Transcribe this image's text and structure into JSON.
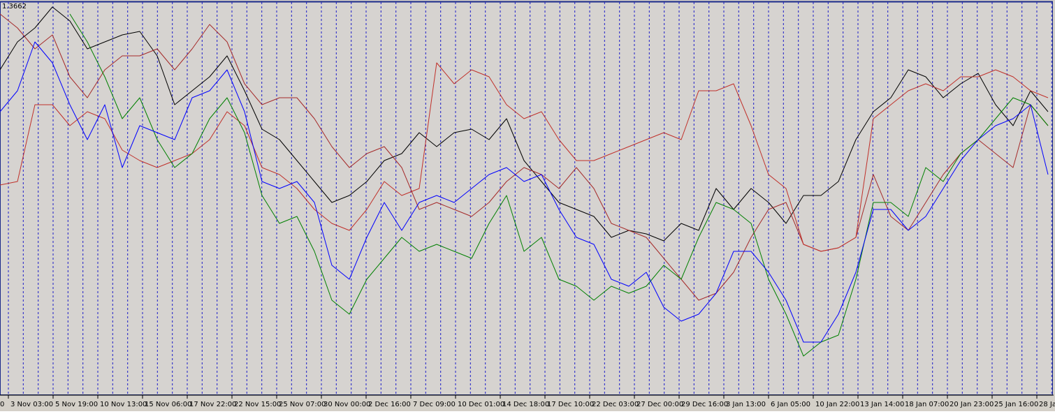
{
  "chart_data": {
    "type": "line",
    "ylim": [
      1.31,
      1.3662
    ],
    "yticks": [
      1.3662
    ],
    "xtick_labels": [
      "0",
      "3 Nov 03:00",
      "5 Nov 19:00",
      "10 Nov 13:00",
      "15 Nov 06:00",
      "17 Nov 22:00",
      "22 Nov 15:00",
      "25 Nov 07:00",
      "30 Nov 00:00",
      "2 Dec 16:00",
      "7 Dec 09:00",
      "10 Dec 01:00",
      "14 Dec 18:00",
      "17 Dec 10:00",
      "22 Dec 03:00",
      "27 Dec 00:00",
      "29 Dec 16:00",
      "3 Jan 13:00",
      "6 Jan 05:00",
      "10 Jan 22:00",
      "13 Jan 14:00",
      "18 Jan 07:00",
      "20 Jan 23:00",
      "25 Jan 16:00",
      "28 Ja"
    ],
    "grid": true,
    "series": [
      {
        "color": "#000000",
        "values": [
          1.3565,
          1.3605,
          1.3625,
          1.3655,
          1.3635,
          1.3595,
          1.3605,
          1.3615,
          1.362,
          1.3585,
          1.3515,
          1.3535,
          1.3555,
          1.3585,
          1.3535,
          1.348,
          1.3465,
          1.3435,
          1.3405,
          1.3375,
          1.3385,
          1.3405,
          1.3435,
          1.3445,
          1.3475,
          1.3455,
          1.3475,
          1.348,
          1.3465,
          1.3495,
          1.3435,
          1.3405,
          1.3375,
          1.3365,
          1.3355,
          1.3325,
          1.3335,
          1.333,
          1.332,
          1.3345,
          1.3335,
          1.3395,
          1.3365,
          1.3395,
          1.3375,
          1.3345,
          1.3385,
          1.3385,
          1.3405,
          1.3465,
          1.3505,
          1.3525,
          1.3565,
          1.3555,
          1.3525,
          1.3545,
          1.356,
          1.3515,
          1.3485,
          1.3535,
          1.3505
        ]
      },
      {
        "color": "#a52a2a",
        "values": [
          1.3645,
          1.3625,
          1.3595,
          1.3615,
          1.3555,
          1.3525,
          1.3565,
          1.3585,
          1.3585,
          1.3595,
          1.3565,
          1.3595,
          1.363,
          1.3605,
          1.3545,
          1.3515,
          1.3525,
          1.3525,
          1.3495,
          1.3455,
          1.3425,
          1.3445,
          1.3455,
          1.3425,
          1.3365,
          1.3375,
          1.3365,
          1.3355,
          1.3375,
          1.3405,
          1.3425,
          1.3415,
          1.3395,
          1.3425,
          1.3395,
          1.3345,
          1.3335,
          1.3325,
          1.3295,
          1.3265,
          1.3235,
          1.3245,
          1.3275,
          1.3325,
          1.3365,
          1.3375,
          1.3315,
          1.3305,
          1.331,
          1.3325,
          1.3415,
          1.3355,
          1.3335,
          1.3375,
          1.3415,
          1.3445,
          1.3465,
          1.3445,
          1.3425,
          1.3515,
          1.3485
        ]
      },
      {
        "color": "#c0302a",
        "values": [
          1.34,
          1.3405,
          1.3515,
          1.3515,
          1.3485,
          1.3505,
          1.3495,
          1.345,
          1.3435,
          1.3425,
          1.3435,
          1.3445,
          1.3465,
          1.3505,
          1.3485,
          1.3425,
          1.3415,
          1.3395,
          1.3365,
          1.3345,
          1.3335,
          1.3365,
          1.3405,
          1.3385,
          1.3395,
          1.3575,
          1.3545,
          1.3565,
          1.3555,
          1.3515,
          1.3495,
          1.3505,
          1.3465,
          1.3435,
          1.3435,
          1.3445,
          1.3455,
          1.3465,
          1.3475,
          1.3465,
          1.3535,
          1.3535,
          1.3545,
          1.3485,
          1.3415,
          1.3395,
          1.3315,
          1.3305,
          1.331,
          1.3325,
          1.3495,
          1.3515,
          1.3535,
          1.3545,
          1.3535,
          1.3555,
          1.3555,
          1.3565,
          1.3555,
          1.3535,
          1.3525
        ]
      },
      {
        "color": "#008000",
        "values": [
          null,
          null,
          null,
          null,
          1.3645,
          1.3605,
          1.3555,
          1.3495,
          1.3525,
          1.3465,
          1.3425,
          1.3445,
          1.3495,
          1.3525,
          1.3475,
          1.3385,
          1.3345,
          1.3355,
          1.3305,
          1.3235,
          1.3215,
          1.3265,
          1.3295,
          1.3325,
          1.3305,
          1.3315,
          1.3305,
          1.3295,
          1.3345,
          1.3385,
          1.3305,
          1.3325,
          1.3265,
          1.3255,
          1.3235,
          1.3255,
          1.3245,
          1.3255,
          1.3285,
          1.3265,
          1.3325,
          1.3375,
          1.3365,
          1.3345,
          1.3265,
          1.3215,
          1.3155,
          1.3175,
          1.3185,
          1.3265,
          1.3375,
          1.3375,
          1.3355,
          1.3425,
          1.3405,
          1.3445,
          1.3465,
          1.3495,
          1.3525,
          1.3515,
          1.3485
        ]
      },
      {
        "color": "#0000ff",
        "values": [
          1.3505,
          1.3535,
          1.3605,
          1.3575,
          1.3515,
          1.3465,
          1.3515,
          1.3425,
          1.3485,
          1.3475,
          1.3465,
          1.3525,
          1.3535,
          1.3565,
          1.3505,
          1.3405,
          1.3395,
          1.3405,
          1.3375,
          1.3285,
          1.3265,
          1.3325,
          1.3375,
          1.3335,
          1.3375,
          1.3385,
          1.3375,
          1.3395,
          1.3415,
          1.3425,
          1.3405,
          1.3415,
          1.3365,
          1.3325,
          1.3315,
          1.3265,
          1.3255,
          1.3275,
          1.3225,
          1.3205,
          1.3215,
          1.3245,
          1.3305,
          1.3305,
          1.3275,
          1.3235,
          1.3175,
          1.3175,
          1.3215,
          1.3275,
          1.3365,
          1.3365,
          1.3335,
          1.3355,
          1.3395,
          1.3435,
          1.3465,
          1.3485,
          1.3495,
          1.3515,
          1.3415
        ]
      }
    ]
  }
}
